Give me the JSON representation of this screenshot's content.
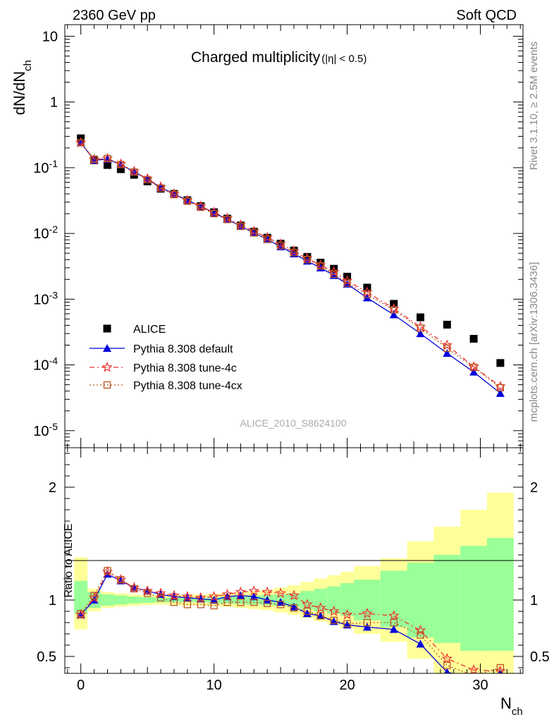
{
  "header": {
    "left": "2360 GeV pp",
    "right": "Soft QCD"
  },
  "side_text": {
    "rivet": "Rivet 3.1.10, ≥ 2.5M events",
    "mcplots": "mcplots.cern.ch [arXiv:1306.3436]"
  },
  "watermark": "ALICE_2010_S8624100",
  "colors": {
    "alice": "#000000",
    "default": "#0000dd",
    "tune4c": "#ee3333",
    "tune4cx": "#bb5522",
    "band_inner": "#99ff99",
    "band_outer": "#ffff99"
  },
  "chart_data": [
    {
      "type": "scatter",
      "panel": "main",
      "title": "Charged multiplicity",
      "title_suffix": "(|η| < 0.5)",
      "ylabel": "dN/dN",
      "ylabel_sub": "ch",
      "yscale": "log",
      "ylim": [
        5.5e-06,
        15
      ],
      "xlim": [
        -1.2,
        33.2
      ],
      "y_tick_labels": [
        {
          "base": "10",
          "exp": "-5",
          "value": 1e-05
        },
        {
          "base": "10",
          "exp": "-4",
          "value": 0.0001
        },
        {
          "base": "10",
          "exp": "-3",
          "value": 0.001
        },
        {
          "base": "10",
          "exp": "-2",
          "value": 0.01
        },
        {
          "base": "10",
          "exp": "-1",
          "value": 0.1
        },
        {
          "base": "1",
          "exp": "",
          "value": 1
        },
        {
          "base": "10",
          "exp": "",
          "value": 10
        }
      ],
      "legend": [
        "ALICE",
        "Pythia 8.308 default",
        "Pythia 8.308 tune-4c",
        "Pythia 8.308 tune-4cx"
      ],
      "x": [
        0,
        1,
        2,
        3,
        4,
        5,
        6,
        7,
        8,
        9,
        10,
        11,
        12,
        13,
        14,
        15,
        16,
        17,
        18,
        19,
        20,
        21.5,
        23.5,
        25.5,
        27.5,
        29.5,
        31.5
      ],
      "series": [
        {
          "name": "ALICE",
          "values": [
            0.28,
            0.13,
            0.11,
            0.095,
            0.078,
            0.062,
            0.048,
            0.04,
            0.032,
            0.026,
            0.021,
            0.0168,
            0.0132,
            0.0106,
            0.0086,
            0.007,
            0.0055,
            0.0044,
            0.0036,
            0.0029,
            0.0022,
            0.0015,
            0.00085,
            0.00053,
            0.00041,
            0.00025,
            0.000107
          ]
        },
        {
          "name": "Pythia 8.308 default",
          "values": [
            0.24,
            0.13,
            0.135,
            0.111,
            0.087,
            0.067,
            0.05,
            0.04,
            0.032,
            0.026,
            0.0205,
            0.0164,
            0.0129,
            0.0102,
            0.0081,
            0.0063,
            0.0049,
            0.0038,
            0.003,
            0.0023,
            0.0017,
            0.00105,
            0.00058,
            0.0003,
            0.00015,
            7.8e-05,
            3.7e-05
          ]
        },
        {
          "name": "Pythia 8.308 tune-4c",
          "values": [
            0.24,
            0.133,
            0.138,
            0.114,
            0.088,
            0.068,
            0.051,
            0.04,
            0.032,
            0.026,
            0.021,
            0.017,
            0.0135,
            0.0108,
            0.0087,
            0.0069,
            0.0054,
            0.0042,
            0.0033,
            0.0026,
            0.0019,
            0.00128,
            0.00072,
            0.00038,
            0.0002,
            9.4e-05,
            4.7e-05
          ]
        },
        {
          "name": "Pythia 8.308 tune-4cx",
          "values": [
            0.24,
            0.135,
            0.138,
            0.112,
            0.086,
            0.066,
            0.049,
            0.039,
            0.031,
            0.025,
            0.02,
            0.0163,
            0.0128,
            0.0102,
            0.0082,
            0.0065,
            0.0051,
            0.004,
            0.0032,
            0.0024,
            0.00175,
            0.00118,
            0.00069,
            0.00036,
            0.00018,
            9.2e-05,
            4.5e-05
          ]
        }
      ]
    },
    {
      "type": "line",
      "panel": "ratio",
      "ylabel": "Ratio to ALICE",
      "xlabel": "N",
      "xlabel_sub": "ch",
      "ylim": [
        0.35,
        2.35
      ],
      "xlim": [
        -1.2,
        33.2
      ],
      "x_ticks": [
        0,
        10,
        20,
        30
      ],
      "y_ticks": [
        0.5,
        1,
        2
      ],
      "x": [
        0,
        1,
        2,
        3,
        4,
        5,
        6,
        7,
        8,
        9,
        10,
        11,
        12,
        13,
        14,
        15,
        16,
        17,
        18,
        19,
        20,
        21.5,
        23.5,
        25.5,
        27.5,
        29.5,
        31.5
      ],
      "series": [
        {
          "name": "Pythia 8.308 default",
          "values": [
            0.87,
            1.0,
            1.23,
            1.17,
            1.11,
            1.08,
            1.05,
            1.03,
            1.02,
            1.01,
            1.0,
            1.03,
            1.04,
            1.03,
            1.0,
            0.98,
            0.94,
            0.88,
            0.86,
            0.81,
            0.78,
            0.76,
            0.74,
            0.61,
            0.36,
            0.31,
            0.35
          ]
        },
        {
          "name": "Pythia 8.308 tune-4c",
          "values": [
            0.87,
            1.02,
            1.25,
            1.18,
            1.11,
            1.08,
            1.06,
            1.04,
            1.03,
            1.02,
            1.03,
            1.05,
            1.07,
            1.08,
            1.07,
            1.06,
            1.04,
            0.96,
            0.93,
            0.9,
            0.87,
            0.88,
            0.86,
            0.73,
            0.48,
            0.38,
            0.37
          ]
        },
        {
          "name": "Pythia 8.308 tune-4cx",
          "values": [
            0.88,
            1.04,
            1.26,
            1.18,
            1.1,
            1.06,
            1.02,
            0.98,
            0.96,
            0.96,
            0.95,
            0.98,
            0.98,
            0.98,
            0.97,
            0.96,
            0.93,
            0.9,
            0.86,
            0.82,
            0.79,
            0.8,
            0.8,
            0.69,
            0.42,
            0.33,
            0.4
          ]
        }
      ],
      "bands": {
        "edges": [
          -0.5,
          0.5,
          1.5,
          2.5,
          3.5,
          4.5,
          5.5,
          6.5,
          7.5,
          8.5,
          9.5,
          10.5,
          11.5,
          12.5,
          13.5,
          14.5,
          15.5,
          16.5,
          17.5,
          18.5,
          19.5,
          20.5,
          22.5,
          24.5,
          26.5,
          28.5,
          30.5,
          32.5
        ],
        "inner_low": [
          0.88,
          0.93,
          0.95,
          0.96,
          0.97,
          0.975,
          0.98,
          0.98,
          0.98,
          0.98,
          0.975,
          0.97,
          0.965,
          0.96,
          0.955,
          0.95,
          0.94,
          0.92,
          0.9,
          0.88,
          0.86,
          0.82,
          0.76,
          0.67,
          0.62,
          0.55,
          0.55
        ],
        "inner_high": [
          1.17,
          1.07,
          1.05,
          1.04,
          1.03,
          1.025,
          1.02,
          1.02,
          1.02,
          1.02,
          1.025,
          1.03,
          1.035,
          1.04,
          1.045,
          1.05,
          1.06,
          1.08,
          1.1,
          1.12,
          1.15,
          1.18,
          1.26,
          1.33,
          1.4,
          1.48,
          1.55
        ],
        "outer_low": [
          0.74,
          0.9,
          0.93,
          0.94,
          0.95,
          0.955,
          0.96,
          0.955,
          0.95,
          0.95,
          0.945,
          0.94,
          0.93,
          0.92,
          0.91,
          0.89,
          0.87,
          0.84,
          0.81,
          0.78,
          0.75,
          0.7,
          0.63,
          0.48,
          0.35,
          0.35,
          0.35
        ],
        "outer_high": [
          1.38,
          1.1,
          1.07,
          1.06,
          1.05,
          1.045,
          1.04,
          1.045,
          1.05,
          1.05,
          1.055,
          1.06,
          1.07,
          1.08,
          1.09,
          1.11,
          1.13,
          1.16,
          1.19,
          1.22,
          1.25,
          1.3,
          1.37,
          1.52,
          1.65,
          1.8,
          1.95
        ]
      }
    }
  ]
}
